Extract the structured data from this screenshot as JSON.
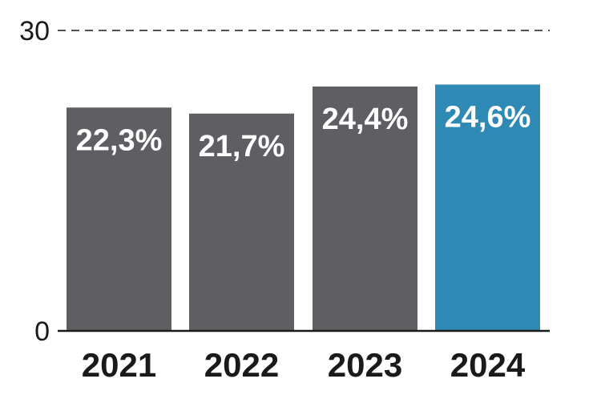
{
  "chart_data": {
    "type": "bar",
    "title": "",
    "xlabel": "",
    "ylabel": "",
    "categories": [
      "2021",
      "2022",
      "2023",
      "2024"
    ],
    "values": [
      22.3,
      21.7,
      24.4,
      24.6
    ],
    "value_labels": [
      "22,3%",
      "21,7%",
      "24,4%",
      "24,6%"
    ],
    "ylim": [
      0,
      30
    ],
    "y_ticks": [
      0,
      30
    ],
    "y_tick_labels": [
      "0",
      "30"
    ],
    "grid": "dashed line at 30",
    "legend": "none",
    "colors": {
      "default_bar": "#5f5e63",
      "highlight_bar": "#2f89b5",
      "axis": "#1a1a1a"
    },
    "highlight_index": 3
  }
}
